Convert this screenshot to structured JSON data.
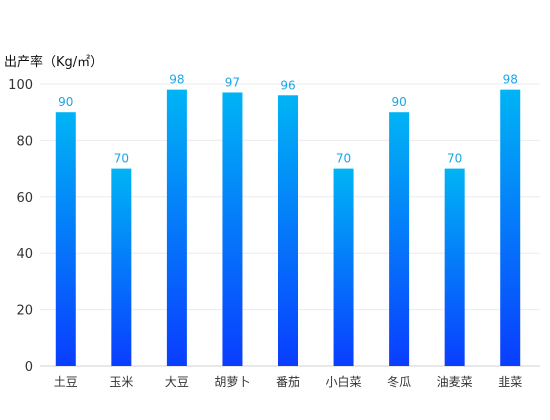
{
  "chart_data": {
    "type": "bar",
    "ylabel": "出产率（Kg/㎡）",
    "categories": [
      "土豆",
      "玉米",
      "大豆",
      "胡萝卜",
      "番茄",
      "小白菜",
      "冬瓜",
      "油麦菜",
      "韭菜"
    ],
    "values": [
      90,
      70,
      98,
      97,
      96,
      70,
      90,
      70,
      98
    ],
    "ylim": [
      0,
      100
    ],
    "yticks": [
      0,
      20,
      40,
      60,
      80,
      100
    ],
    "grid": true,
    "legend": "none",
    "colors": {
      "bar_top": "#00b4f5",
      "bar_bottom": "#0a3dff",
      "data_label": "#1aa6e8"
    }
  }
}
